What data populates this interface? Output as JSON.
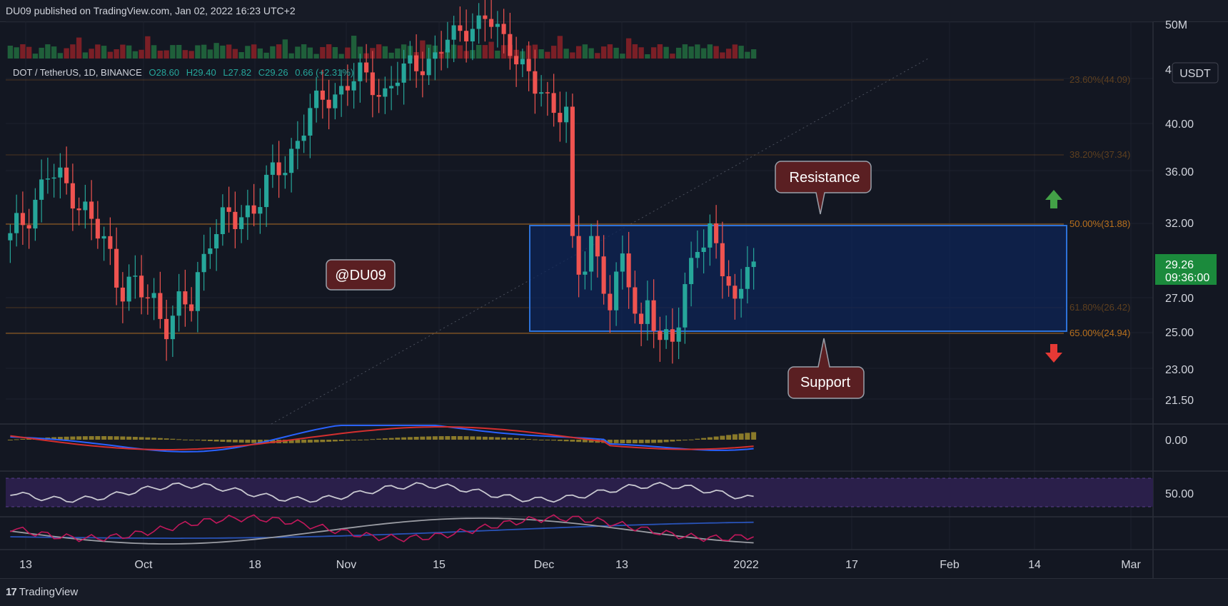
{
  "header": {
    "published": "DU09 published on TradingView.com, Jan 02, 2022 16:23 UTC+2"
  },
  "footer": {
    "brand": "TradingView"
  },
  "colors": {
    "background": "#131722",
    "up": "#26a69a",
    "down": "#ef5350",
    "fib": "#b8701d",
    "zone": "#1848b8",
    "callout": "#5a1f22",
    "price_tag": "#1b8a3c",
    "macd_line": "#2962ff",
    "signal_line": "#d32f2f",
    "rsi_fill": "#2a1f4a"
  },
  "legend": {
    "symbol": "DOT / TetherUS, 1D, BINANCE",
    "open": "O28.60",
    "high": "H29.40",
    "low": "L27.82",
    "close": "C29.26",
    "change": "0.66 (+2.31%)"
  },
  "currency_badge": "USDT",
  "price_tag": {
    "price": "29.26",
    "countdown": "09:36:00"
  },
  "watermark_tag": "@DU09",
  "chart_data": {
    "type": "candlestick",
    "symbol": "DOT / TetherUS",
    "interval": "1D",
    "exchange": "BINANCE",
    "price_axis": {
      "scale": "log",
      "ticks": [
        "50M",
        "4",
        "40.00",
        "36.00",
        "32.00",
        "27.00",
        "25.00",
        "23.00",
        "21.50"
      ],
      "tick_values": [
        null,
        null,
        40.0,
        36.0,
        32.0,
        27.0,
        25.0,
        23.0,
        21.5
      ]
    },
    "time_axis": {
      "ticks": [
        "13",
        "Oct",
        "18",
        "Nov",
        "15",
        "Dec",
        "13",
        "2022",
        "17",
        "Feb",
        "14",
        "Mar"
      ]
    },
    "candles": [
      [
        29.0,
        30.2,
        28.8,
        30.6,
        31.0,
        30.1,
        28.5,
        27.8,
        35.6,
        34.4,
        35.2,
        33.7,
        31.4,
        32.5,
        31.2,
        28.6,
        26.5,
        26.8,
        29.2,
        28.4,
        26.7,
        26.9,
        28.6,
        30.5,
        31.4,
        27.9,
        28.0,
        26.3,
        24.9,
        24.6,
        25.2,
        27.1,
        31.2,
        31.5,
        31.8,
        32.3,
        31.4,
        28.4,
        28.3,
        29.4,
        31.2,
        32.2,
        34.8,
        36.4,
        35.2,
        34.3,
        33.5,
        39.0,
        42.3,
        42.4,
        41.6,
        42.1,
        40.4,
        45.6,
        46.9,
        45.4,
        43.9,
        43.7,
        43.3,
        46.5,
        46.0,
        47.6,
        46.0,
        41.8,
        43.8,
        48.8,
        47.6
      ],
      [
        30.2,
        28.8,
        30.6,
        31.0,
        30.1,
        28.5,
        27.8,
        35.6,
        34.4,
        35.2,
        33.7,
        31.4,
        32.5,
        31.2,
        28.6,
        26.5,
        26.8,
        29.2,
        28.4,
        26.7,
        26.9,
        28.6,
        30.5,
        31.4,
        27.9,
        28.0,
        26.3,
        24.9,
        24.6,
        25.2,
        27.1,
        31.2,
        31.5,
        31.8,
        32.3,
        31.4,
        28.4,
        28.3,
        29.4,
        31.2,
        32.2,
        34.8,
        36.4,
        35.2,
        34.3,
        33.5,
        39.0,
        42.3,
        42.4,
        41.6,
        42.1,
        40.4,
        45.6,
        46.9,
        45.4,
        43.9,
        43.7,
        43.3,
        46.5,
        46.0,
        47.6,
        46.0,
        41.8,
        43.8,
        48.8,
        47.6,
        49.0
      ]
    ],
    "candle_range": {
      "start": "2021-09-05",
      "end": "2022-01-02",
      "count": 120
    },
    "fibonacci": [
      {
        "level": "23.60%",
        "price": "44.09",
        "label": "23.60%(44.09)"
      },
      {
        "level": "38.20%",
        "price": "37.34",
        "label": "38.20%(37.34)"
      },
      {
        "level": "50.00%",
        "price": "31.88",
        "label": "50.00%(31.88)"
      },
      {
        "level": "61.80%",
        "price": "26.42",
        "label": "61.80%(26.42)"
      },
      {
        "level": "65.00%",
        "price": "24.94",
        "label": "65.00%(24.94)"
      }
    ],
    "zone": {
      "top": 31.88,
      "bottom": 25.0
    },
    "annotations": [
      {
        "text": "Resistance",
        "pointer": "down"
      },
      {
        "text": "Support",
        "pointer": "up"
      },
      {
        "text": "@DU09",
        "pointer": "none"
      }
    ],
    "indicators": {
      "macd": {
        "axis_label": "0.00"
      },
      "rsi": {
        "axis_label": "50.00"
      }
    }
  }
}
